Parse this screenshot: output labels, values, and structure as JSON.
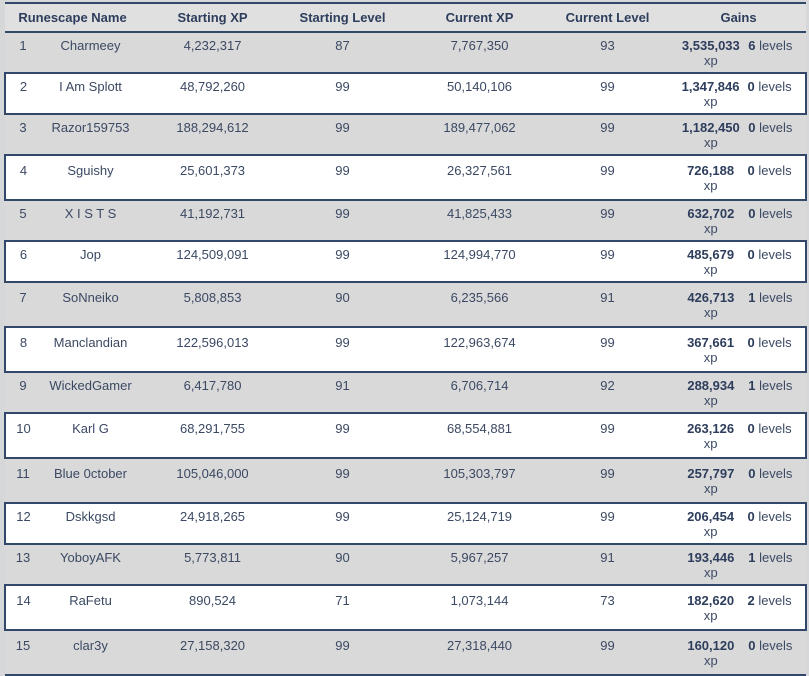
{
  "colors": {
    "page_bg": "#d6d7d9",
    "header_bg": "#e0e0e0",
    "row_gray": "#d9d9d9",
    "row_white": "#ffffff",
    "border": "#32486b",
    "text": "#3b4963",
    "bold": "#2d3d5c"
  },
  "table": {
    "columns": [
      "Runescape Name",
      "Starting XP",
      "Starting Level",
      "Current XP",
      "Current Level",
      "Gains"
    ],
    "gain_xp_unit": "xp",
    "gain_levels_unit": "levels",
    "rows": [
      {
        "rank": "1",
        "name": "Charmeey",
        "starting_xp": "4,232,317",
        "starting_level": "87",
        "current_xp": "7,767,350",
        "current_level": "93",
        "gain_xp": "3,535,033",
        "gain_xp_two_line": true,
        "gain_levels": "6"
      },
      {
        "rank": "2",
        "name": "I Am Splott",
        "starting_xp": "48,792,260",
        "starting_level": "99",
        "current_xp": "50,140,106",
        "current_level": "99",
        "gain_xp": "1,347,846",
        "gain_xp_two_line": true,
        "gain_levels": "0"
      },
      {
        "rank": "3",
        "name": "Razor159753",
        "starting_xp": "188,294,612",
        "starting_level": "99",
        "current_xp": "189,477,062",
        "current_level": "99",
        "gain_xp": "1,182,450",
        "gain_xp_two_line": true,
        "gain_levels": "0"
      },
      {
        "rank": "4",
        "name": "Sguishy",
        "starting_xp": "25,601,373",
        "starting_level": "99",
        "current_xp": "26,327,561",
        "current_level": "99",
        "gain_xp": "726,188",
        "gain_xp_two_line": false,
        "gain_levels": "0"
      },
      {
        "rank": "5",
        "name": "X I S T S",
        "starting_xp": "41,192,731",
        "starting_level": "99",
        "current_xp": "41,825,433",
        "current_level": "99",
        "gain_xp": "632,702",
        "gain_xp_two_line": true,
        "gain_levels": "0"
      },
      {
        "rank": "6",
        "name": "Jop",
        "starting_xp": "124,509,091",
        "starting_level": "99",
        "current_xp": "124,994,770",
        "current_level": "99",
        "gain_xp": "485,679",
        "gain_xp_two_line": true,
        "gain_levels": "0"
      },
      {
        "rank": "7",
        "name": "SoNneiko",
        "starting_xp": "5,808,853",
        "starting_level": "90",
        "current_xp": "6,235,566",
        "current_level": "91",
        "gain_xp": "426,713",
        "gain_xp_two_line": false,
        "gain_levels": "1"
      },
      {
        "rank": "8",
        "name": "Manclandian",
        "starting_xp": "122,596,013",
        "starting_level": "99",
        "current_xp": "122,963,674",
        "current_level": "99",
        "gain_xp": "367,661",
        "gain_xp_two_line": false,
        "gain_levels": "0"
      },
      {
        "rank": "9",
        "name": "WickedGamer",
        "starting_xp": "6,417,780",
        "starting_level": "91",
        "current_xp": "6,706,714",
        "current_level": "92",
        "gain_xp": "288,934",
        "gain_xp_two_line": true,
        "gain_levels": "1"
      },
      {
        "rank": "10",
        "name": "Karl G",
        "starting_xp": "68,291,755",
        "starting_level": "99",
        "current_xp": "68,554,881",
        "current_level": "99",
        "gain_xp": "263,126",
        "gain_xp_two_line": false,
        "gain_levels": "0"
      },
      {
        "rank": "11",
        "name": "Blue 0ctober",
        "starting_xp": "105,046,000",
        "starting_level": "99",
        "current_xp": "105,303,797",
        "current_level": "99",
        "gain_xp": "257,797",
        "gain_xp_two_line": false,
        "gain_levels": "0"
      },
      {
        "rank": "12",
        "name": "Dskkgsd",
        "starting_xp": "24,918,265",
        "starting_level": "99",
        "current_xp": "25,124,719",
        "current_level": "99",
        "gain_xp": "206,454",
        "gain_xp_two_line": true,
        "gain_levels": "0"
      },
      {
        "rank": "13",
        "name": "YoboyAFK",
        "starting_xp": "5,773,811",
        "starting_level": "90",
        "current_xp": "5,967,257",
        "current_level": "91",
        "gain_xp": "193,446",
        "gain_xp_two_line": true,
        "gain_levels": "1"
      },
      {
        "rank": "14",
        "name": "RaFetu",
        "starting_xp": "890,524",
        "starting_level": "71",
        "current_xp": "1,073,144",
        "current_level": "73",
        "gain_xp": "182,620",
        "gain_xp_two_line": false,
        "gain_levels": "2"
      },
      {
        "rank": "15",
        "name": "clar3y",
        "starting_xp": "27,158,320",
        "starting_level": "99",
        "current_xp": "27,318,440",
        "current_level": "99",
        "gain_xp": "160,120",
        "gain_xp_two_line": false,
        "gain_levels": "0"
      }
    ]
  }
}
